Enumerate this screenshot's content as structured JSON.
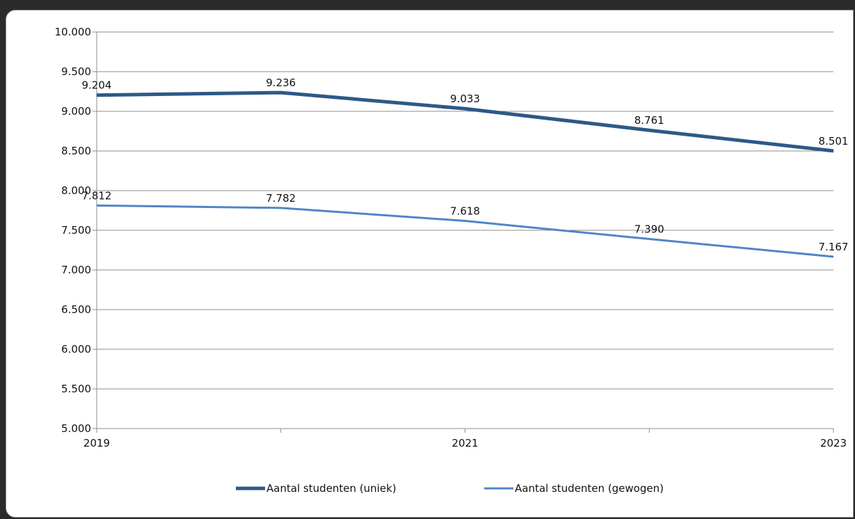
{
  "chart_data": {
    "type": "line",
    "x": [
      2019,
      2020,
      2021,
      2022,
      2023
    ],
    "x_tick_labels": [
      "2019",
      "",
      "2021",
      "",
      "2023"
    ],
    "y_tick_labels": [
      "5.000",
      "5.500",
      "6.000",
      "6.500",
      "7.000",
      "7.500",
      "8.000",
      "8.500",
      "9.000",
      "9.500",
      "10.000"
    ],
    "ylim": [
      5000,
      10000
    ],
    "grid": true,
    "legend_position": "bottom",
    "series": [
      {
        "name": "Aantal studenten (uniek)",
        "values": [
          9204,
          9236,
          9033,
          8761,
          8501
        ],
        "labels": [
          "9.204",
          "9.236",
          "9.033",
          "8.761",
          "8.501"
        ],
        "color": "#2d5986"
      },
      {
        "name": "Aantal studenten (gewogen)",
        "values": [
          7812,
          7782,
          7618,
          7390,
          7167
        ],
        "labels": [
          "7.812",
          "7.782",
          "7.618",
          "7.390",
          "7.167"
        ],
        "color": "#4f86c6"
      }
    ]
  }
}
